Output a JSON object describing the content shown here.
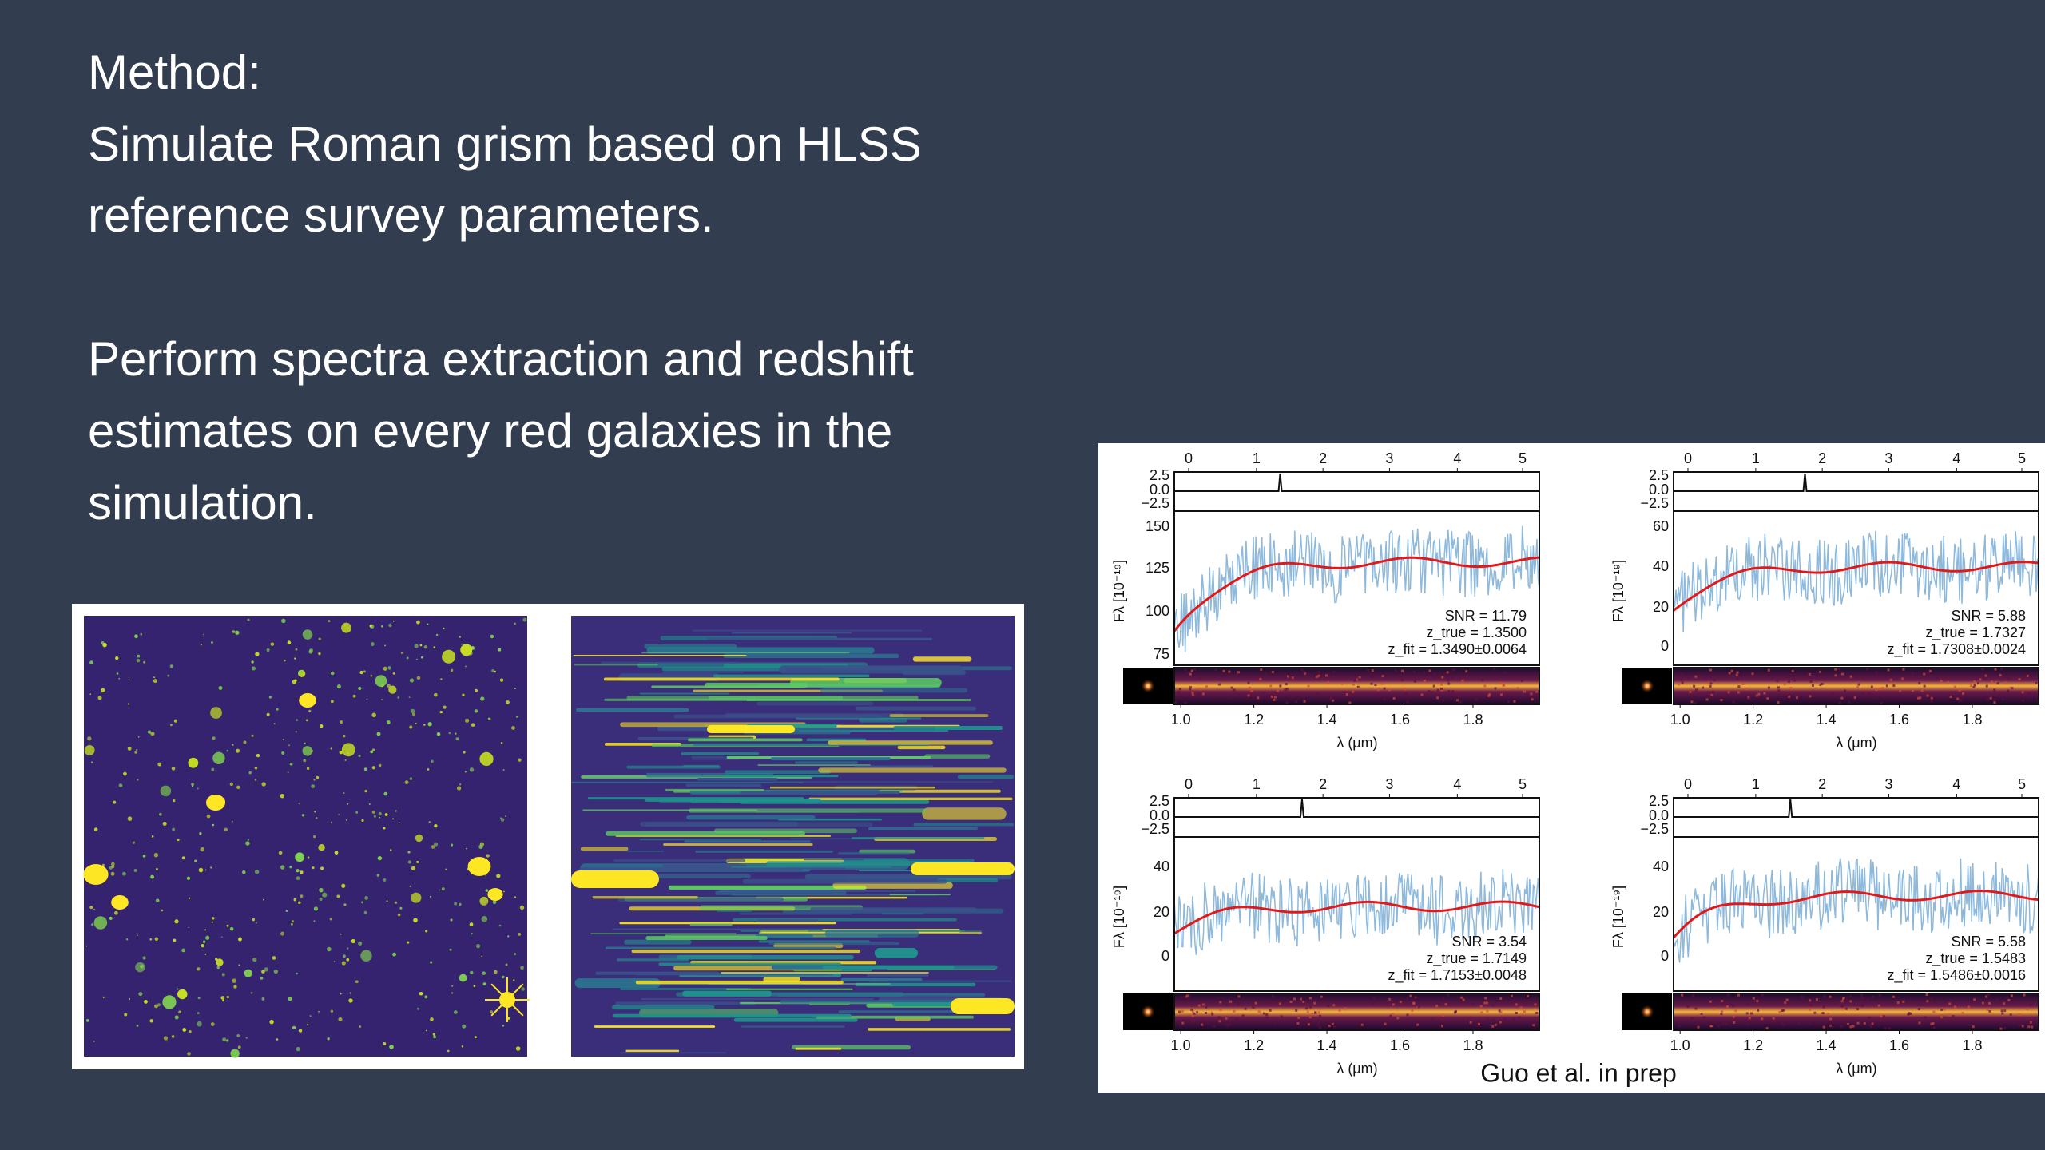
{
  "slide": {
    "lines": [
      "Method:",
      "Simulate Roman grism based on HLSS",
      "reference survey parameters.",
      "Perform spectra extraction and redshift",
      "estimates on every red galaxies in the",
      "simulation."
    ],
    "figure": {
      "caption": "Guo et al. in prep",
      "top_ticks": [
        "0",
        "1",
        "2",
        "3",
        "4",
        "5"
      ],
      "residual_ticks": [
        "2.5",
        "0.0",
        "−2.5"
      ],
      "ylabel": "Fλ [10⁻¹⁹]",
      "xlabel": "λ (μm)",
      "xticks": [
        "1.0",
        "1.2",
        "1.4",
        "1.6",
        "1.8"
      ],
      "panels": [
        {
          "yticks": [
            "150",
            "125",
            "100",
            "75"
          ],
          "snr": "SNR = 11.79",
          "z_true": "z_true = 1.3500",
          "z_fit": "z_fit = 1.3490±0.0064"
        },
        {
          "yticks": [
            "60",
            "40",
            "20",
            "0"
          ],
          "snr": "SNR = 5.88",
          "z_true": "z_true = 1.7327",
          "z_fit": "z_fit = 1.7308±0.0024"
        },
        {
          "yticks": [
            "40",
            "20",
            "0"
          ],
          "snr": "SNR = 3.54",
          "z_true": "z_true = 1.7149",
          "z_fit": "z_fit = 1.7153±0.0048"
        },
        {
          "yticks": [
            "40",
            "20",
            "0"
          ],
          "snr": "SNR = 5.58",
          "z_true": "z_true = 1.5483",
          "z_fit": "z_fit = 1.5486±0.0016"
        }
      ]
    }
  }
}
